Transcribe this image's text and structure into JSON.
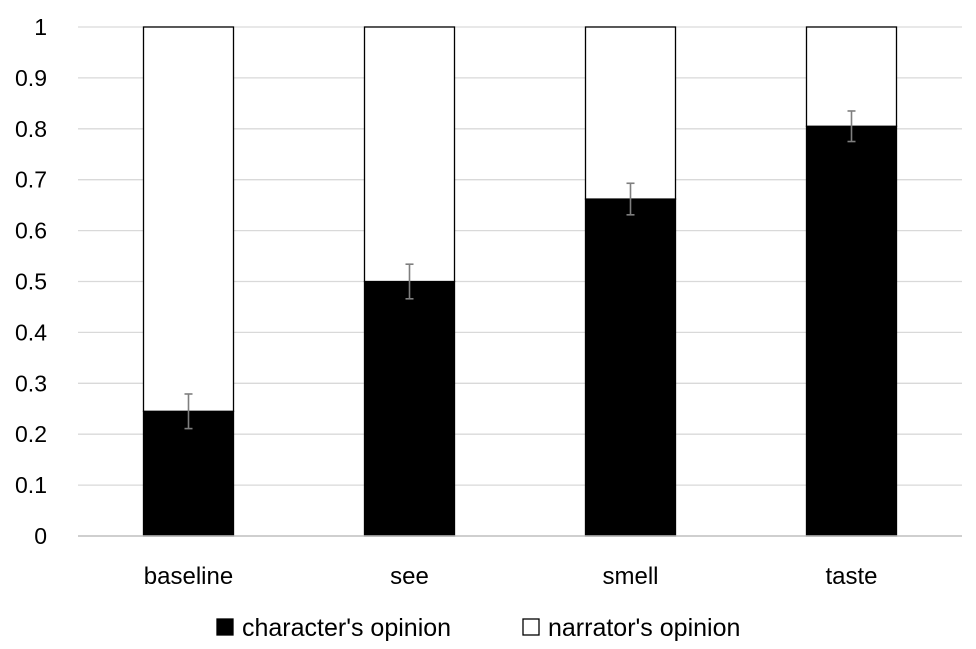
{
  "chart_data": {
    "type": "bar",
    "stacked": true,
    "categories": [
      "baseline",
      "see",
      "smell",
      "taste"
    ],
    "series": [
      {
        "name": "character's opinion",
        "values": [
          0.245,
          0.5,
          0.662,
          0.805
        ],
        "error": [
          0.034,
          0.034,
          0.031,
          0.03
        ],
        "color": "#000000"
      },
      {
        "name": "narrator's opinion",
        "values": [
          0.755,
          0.5,
          0.338,
          0.195
        ],
        "color": "#ffffff"
      }
    ],
    "yticks": [
      "0",
      "0.1",
      "0.2",
      "0.3",
      "0.4",
      "0.5",
      "0.6",
      "0.7",
      "0.8",
      "0.9",
      "1"
    ],
    "ylim": [
      0,
      1
    ],
    "grid": true,
    "legend_position": "bottom"
  }
}
